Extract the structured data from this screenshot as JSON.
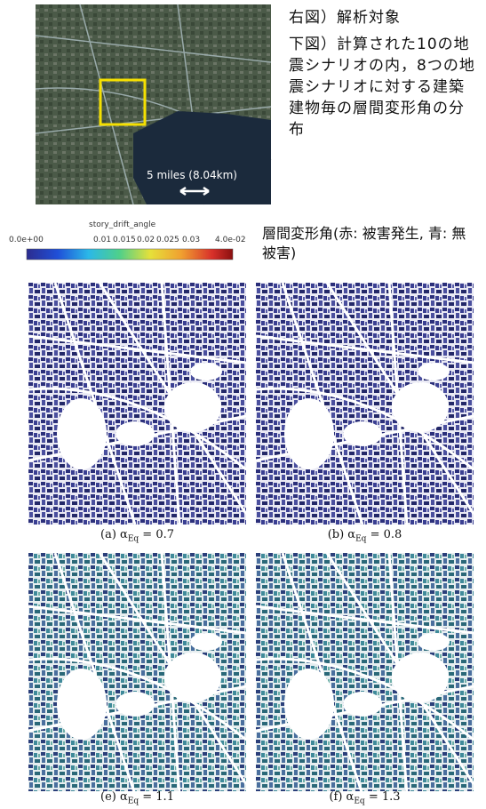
{
  "description": [
    "右図）解析対象",
    "下図）計算された10の地震シナリオの内，8つの地震シナリオに対する建築建物毎の層間変形角の分布"
  ],
  "map": {
    "scale_label": "5 miles (8.04km)"
  },
  "colorbar": {
    "title": "story_drift_angle",
    "ticks": [
      "0.0e+00",
      "0.01",
      "0.015",
      "0.02",
      "0.025",
      "0.03",
      "4.0e-02"
    ],
    "note": "層間変形角(赤: 被害発生, 青: 無被害)"
  },
  "panels": [
    {
      "prefix": "(a) α",
      "sub": "Eq",
      "value": "= 0.7"
    },
    {
      "prefix": "(b) α",
      "sub": "Eq",
      "value": "= 0.8"
    },
    {
      "prefix": "(e) α",
      "sub": "Eq",
      "value": "= 1.1"
    },
    {
      "prefix": "(f) α",
      "sub": "Eq",
      "value": "= 1.3"
    }
  ]
}
